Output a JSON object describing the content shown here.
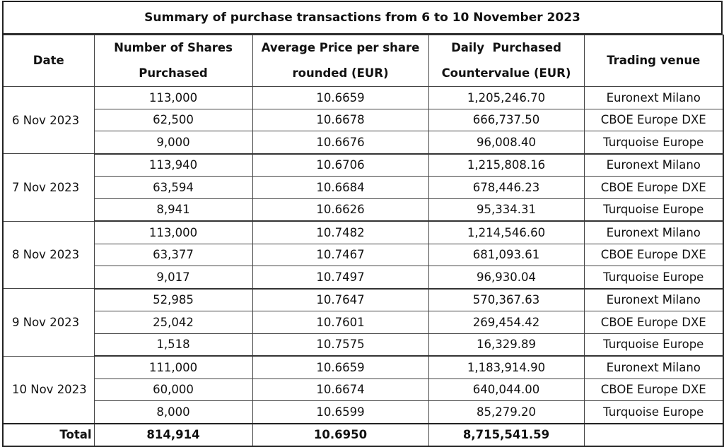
{
  "title": "Summary of purchase transactions from 6 to 10 November 2023",
  "headers": {
    "date": "Date",
    "shares": [
      "Number of Shares",
      "Purchased"
    ],
    "price": [
      "Average Price per share",
      "rounded (EUR)"
    ],
    "value": [
      "Daily  Purchased",
      "Countervalue (EUR)"
    ],
    "venue": "Trading venue"
  },
  "groups": [
    {
      "date": "6 Nov 2023",
      "rows": [
        {
          "shares": "113,000",
          "price": "10.6659",
          "value": "1,205,246.70",
          "venue": "Euronext Milano"
        },
        {
          "shares": "62,500",
          "price": "10.6678",
          "value": "666,737.50",
          "venue": "CBOE Europe DXE"
        },
        {
          "shares": "9,000",
          "price": "10.6676",
          "value": "96,008.40",
          "venue": "Turquoise Europe"
        }
      ]
    },
    {
      "date": "7 Nov 2023",
      "rows": [
        {
          "shares": "113,940",
          "price": "10.6706",
          "value": "1,215,808.16",
          "venue": "Euronext Milano"
        },
        {
          "shares": "63,594",
          "price": "10.6684",
          "value": "678,446.23",
          "venue": "CBOE Europe DXE"
        },
        {
          "shares": "8,941",
          "price": "10.6626",
          "value": "95,334.31",
          "venue": "Turquoise Europe"
        }
      ]
    },
    {
      "date": "8 Nov 2023",
      "rows": [
        {
          "shares": "113,000",
          "price": "10.7482",
          "value": "1,214,546.60",
          "venue": "Euronext Milano"
        },
        {
          "shares": "63,377",
          "price": "10.7467",
          "value": "681,093.61",
          "venue": "CBOE Europe DXE"
        },
        {
          "shares": "9,017",
          "price": "10.7497",
          "value": "96,930.04",
          "venue": "Turquoise Europe"
        }
      ]
    },
    {
      "date": "9 Nov 2023",
      "rows": [
        {
          "shares": "52,985",
          "price": "10.7647",
          "value": "570,367.63",
          "venue": "Euronext Milano"
        },
        {
          "shares": "25,042",
          "price": "10.7601",
          "value": "269,454.42",
          "venue": "CBOE Europe DXE"
        },
        {
          "shares": "1,518",
          "price": "10.7575",
          "value": "16,329.89",
          "venue": "Turquoise Europe"
        }
      ]
    },
    {
      "date": "10 Nov 2023",
      "rows": [
        {
          "shares": "111,000",
          "price": "10.6659",
          "value": "1,183,914.90",
          "venue": "Euronext Milano"
        },
        {
          "shares": "60,000",
          "price": "10.6674",
          "value": "640,044.00",
          "venue": "CBOE Europe DXE"
        },
        {
          "shares": "8,000",
          "price": "10.6599",
          "value": "85,279.20",
          "venue": "Turquoise Europe"
        }
      ]
    }
  ],
  "total": {
    "label": "Total",
    "shares": "814,914",
    "price": "10.6950",
    "value": "8,715,541.59",
    "venue": ""
  }
}
